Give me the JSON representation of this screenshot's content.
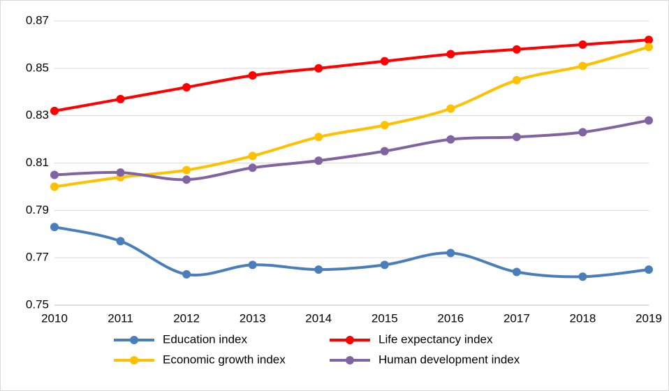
{
  "chart_data": {
    "type": "line",
    "x": [
      2010,
      2011,
      2012,
      2013,
      2014,
      2015,
      2016,
      2017,
      2018,
      2019
    ],
    "xlim": [
      2010,
      2019
    ],
    "xticks": [
      2010,
      2011,
      2012,
      2013,
      2014,
      2015,
      2016,
      2017,
      2018,
      2019
    ],
    "ylim": [
      0.75,
      0.87
    ],
    "yticks": [
      0.75,
      0.77,
      0.79,
      0.81,
      0.83,
      0.85,
      0.87
    ],
    "grid": true,
    "legend": "bottom",
    "series": [
      {
        "name": "Education index",
        "color": "#4a7ebb",
        "values": [
          0.783,
          0.777,
          0.763,
          0.767,
          0.765,
          0.767,
          0.772,
          0.764,
          0.762,
          0.765
        ]
      },
      {
        "name": "Life expectancy index",
        "color": "#ff0000",
        "values": [
          0.832,
          0.837,
          0.842,
          0.847,
          0.85,
          0.853,
          0.856,
          0.858,
          0.86,
          0.862
        ]
      },
      {
        "name": "Economic growth index",
        "color": "#ffc000",
        "values": [
          0.8,
          0.804,
          0.807,
          0.813,
          0.821,
          0.826,
          0.833,
          0.845,
          0.851,
          0.859
        ]
      },
      {
        "name": "Human development index",
        "color": "#8064a2",
        "values": [
          0.805,
          0.806,
          0.803,
          0.808,
          0.811,
          0.815,
          0.82,
          0.821,
          0.823,
          0.828
        ]
      }
    ]
  }
}
